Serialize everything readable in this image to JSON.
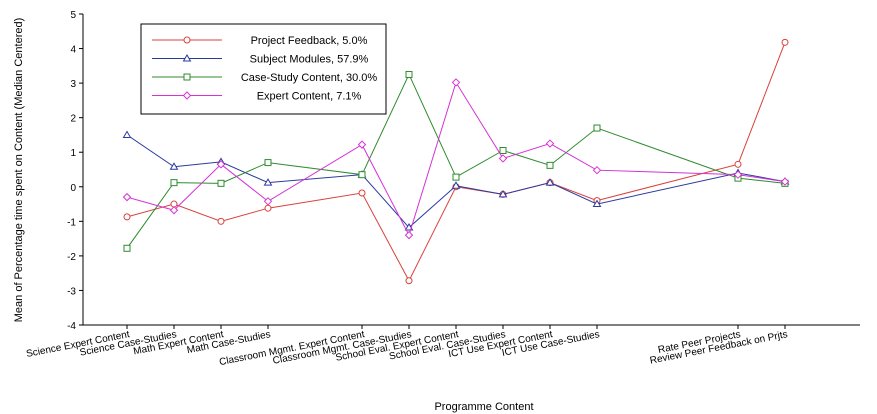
{
  "chart_data": {
    "type": "line",
    "title": "",
    "xlabel": "Programme Content",
    "ylabel": "Mean of Percentage time spent on Content (Median Centered)",
    "ylim": [
      -4,
      5
    ],
    "yticks": [
      -4,
      -3,
      -2,
      -1,
      0,
      1,
      2,
      3,
      4,
      5
    ],
    "grid": false,
    "legend_position": "top-left",
    "categories": [
      "Science Expert Content",
      "Science Case-Studies",
      "Math Expert Content",
      "Math Case-Studies",
      "Classroom Mgmt. Expert Content",
      "Classroom Mgmt. Case-Studies",
      "School Eval. Expert Content",
      "School Eval. Case-Studies",
      "ICT Use Expert Content",
      "ICT Use Case-Studies",
      "Rate Peer Projects",
      "Review Peer Feedback on Prjts"
    ],
    "x_positions": [
      0,
      1,
      2,
      3,
      5,
      6,
      7,
      8,
      9,
      10,
      13,
      14
    ],
    "series": [
      {
        "name": "Project Feedback, 5.0%",
        "color": "#d9413a",
        "marker": "circle",
        "x": [
          0,
          1,
          2,
          3,
          5,
          6,
          7,
          8,
          9,
          10,
          13,
          14
        ],
        "values": [
          -0.87,
          -0.5,
          -1.0,
          -0.62,
          -0.18,
          -2.72,
          0.0,
          -0.22,
          0.12,
          -0.4,
          0.65,
          4.18
        ]
      },
      {
        "name": "Subject Modules, 57.9%",
        "color": "#2b3a9e",
        "marker": "triangle",
        "x": [
          0,
          1,
          2,
          3,
          5,
          6,
          7,
          8,
          9,
          10,
          13,
          14
        ],
        "values": [
          1.5,
          0.58,
          0.72,
          0.12,
          0.35,
          -1.18,
          0.03,
          -0.22,
          0.12,
          -0.5,
          0.4,
          0.15
        ]
      },
      {
        "name": "Case-Study Content, 30.0%",
        "color": "#2e8b2e",
        "marker": "square",
        "x": [
          0,
          1,
          2,
          3,
          5,
          6,
          7,
          8,
          9,
          10,
          13,
          14
        ],
        "values": [
          -1.78,
          0.12,
          0.1,
          0.7,
          0.35,
          3.25,
          0.28,
          1.05,
          0.62,
          1.7,
          0.25,
          0.1
        ]
      },
      {
        "name": "Expert Content, 7.1%",
        "color": "#d632d6",
        "marker": "diamond",
        "x": [
          0,
          1,
          2,
          3,
          5,
          6,
          7,
          8,
          9,
          10,
          13,
          14
        ],
        "values": [
          -0.3,
          -0.68,
          0.65,
          -0.42,
          1.22,
          -1.4,
          3.02,
          0.82,
          1.25,
          0.48,
          0.35,
          0.15
        ]
      }
    ]
  }
}
